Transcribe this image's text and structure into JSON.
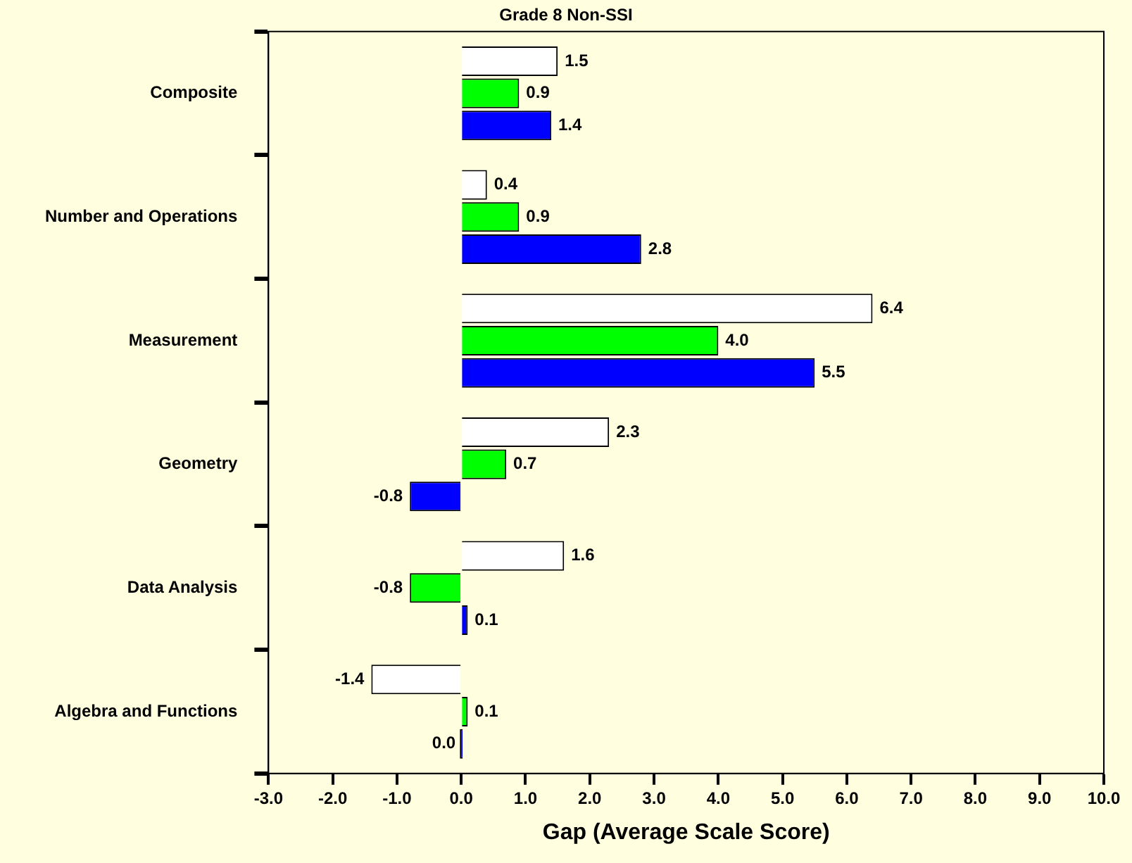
{
  "chart_data": {
    "type": "bar",
    "orientation": "horizontal",
    "title": "Grade 8 Non-SSI",
    "xlabel": "Gap (Average Scale Score)",
    "categories": [
      "Composite",
      "Number and Operations",
      "Measurement",
      "Geometry",
      "Data Analysis",
      "Algebra and Functions"
    ],
    "series": [
      {
        "color": "#ffffff",
        "values": [
          1.5,
          0.4,
          6.4,
          2.3,
          1.6,
          -1.4
        ],
        "value_labels": [
          "1.5",
          "0.4",
          "6.4",
          "2.3",
          "1.6",
          "-1.4"
        ]
      },
      {
        "color": "#00ff00",
        "values": [
          0.9,
          0.9,
          4.0,
          0.7,
          -0.8,
          0.1
        ],
        "value_labels": [
          "0.9",
          "0.9",
          "4.0",
          "0.7",
          "-0.8",
          "0.1"
        ]
      },
      {
        "color": "#0000ff",
        "values": [
          1.4,
          2.8,
          5.5,
          -0.8,
          0.1,
          0.0
        ],
        "value_labels": [
          "1.4",
          "2.8",
          "5.5",
          "-0.8",
          "0.1",
          "0.0"
        ]
      }
    ],
    "xlim": [
      -3,
      10
    ],
    "xticks": [
      {
        "value": -3,
        "label": "-3.0"
      },
      {
        "value": -2,
        "label": "-2.0"
      },
      {
        "value": -1,
        "label": "-1.0"
      },
      {
        "value": 0,
        "label": "0.0"
      },
      {
        "value": 1,
        "label": "1.0"
      },
      {
        "value": 2,
        "label": "2.0"
      },
      {
        "value": 3,
        "label": "3.0"
      },
      {
        "value": 4,
        "label": "4.0"
      },
      {
        "value": 5,
        "label": "5.0"
      },
      {
        "value": 6,
        "label": "6.0"
      },
      {
        "value": 7,
        "label": "7.0"
      },
      {
        "value": 8,
        "label": "8.0"
      },
      {
        "value": 9,
        "label": "9.0"
      },
      {
        "value": 10,
        "label": "10.0"
      }
    ],
    "grid": false,
    "legend": false
  }
}
